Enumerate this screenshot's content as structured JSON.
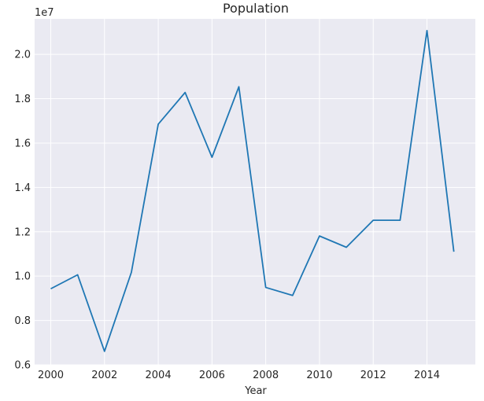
{
  "chart_data": {
    "type": "line",
    "title": "Population",
    "xlabel": "Year",
    "ylabel": "",
    "y_offset_label": "1e7",
    "x": [
      2000,
      2001,
      2002,
      2003,
      2004,
      2005,
      2006,
      2007,
      2008,
      2009,
      2010,
      2011,
      2012,
      2013,
      2014,
      2015
    ],
    "series": [
      {
        "name": "",
        "color": "#1f77b4",
        "values": [
          9430000,
          10060000,
          6610000,
          10170000,
          16850000,
          18280000,
          15360000,
          18540000,
          9490000,
          9130000,
          11810000,
          11300000,
          12520000,
          12520000,
          21070000,
          11100000
        ]
      }
    ],
    "x_ticks": [
      2000,
      2002,
      2004,
      2006,
      2008,
      2010,
      2012,
      2014
    ],
    "x_tick_labels": [
      "2000",
      "2002",
      "2004",
      "2006",
      "2008",
      "2010",
      "2012",
      "2014"
    ],
    "y_ticks": [
      6000000,
      8000000,
      10000000,
      12000000,
      14000000,
      16000000,
      18000000,
      20000000
    ],
    "y_tick_labels": [
      "0.6",
      "0.8",
      "1.0",
      "1.2",
      "1.4",
      "1.6",
      "1.8",
      "2.0"
    ],
    "xlim": [
      1999.4,
      2015.8
    ],
    "ylim": [
      6000000,
      21600000
    ],
    "grid": true,
    "background": "#eaeaf2",
    "grid_color": "#ffffff"
  }
}
